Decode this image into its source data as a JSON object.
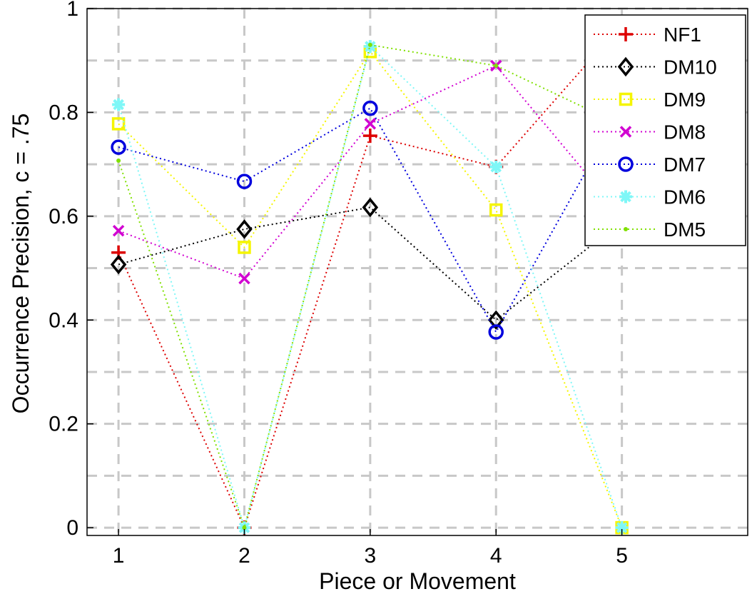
{
  "chart_data": {
    "type": "line",
    "xlabel": "Piece or Movement",
    "ylabel": "Occurrence Precision, c = .75",
    "x": [
      1,
      2,
      3,
      4,
      5
    ],
    "xlim": [
      0.75,
      6.0
    ],
    "ylim": [
      -0.015,
      1.0
    ],
    "xticks": [
      1,
      2,
      3,
      4,
      5
    ],
    "yticks": [
      0,
      0.2,
      0.4,
      0.6,
      0.8,
      1
    ],
    "ytick_labels": [
      "0",
      "0.2",
      "0.4",
      "0.6",
      "0.8",
      "1"
    ],
    "grid": true,
    "legend_position": "top-right",
    "series": [
      {
        "name": "NF1",
        "color": "#dd0000",
        "marker": "plus",
        "values": [
          0.53,
          0.0,
          0.755,
          0.695,
          0.97
        ]
      },
      {
        "name": "DM10",
        "color": "#000000",
        "marker": "diamond",
        "values": [
          0.507,
          0.575,
          0.617,
          0.4,
          0.59
        ]
      },
      {
        "name": "DM9",
        "color": "#f5f500",
        "marker": "square",
        "values": [
          0.778,
          0.54,
          0.917,
          0.612,
          0.0
        ]
      },
      {
        "name": "DM8",
        "color": "#d100d1",
        "marker": "x",
        "values": [
          0.572,
          0.48,
          0.778,
          0.89,
          0.6
        ]
      },
      {
        "name": "DM7",
        "color": "#0000dd",
        "marker": "circle",
        "values": [
          0.733,
          0.667,
          0.808,
          0.377,
          0.81
        ]
      },
      {
        "name": "DM6",
        "color": "#7ff7f7",
        "marker": "star",
        "values": [
          0.815,
          0.0,
          0.927,
          0.695,
          0.0
        ]
      },
      {
        "name": "DM5",
        "color": "#80e000",
        "marker": "dot",
        "values": [
          0.707,
          0.0,
          0.93,
          0.89,
          0.775
        ]
      }
    ]
  }
}
